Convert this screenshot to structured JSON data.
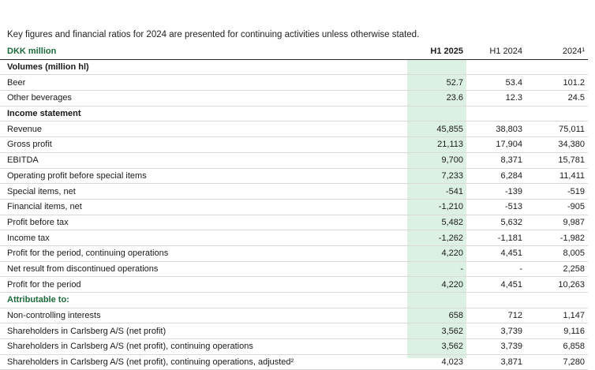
{
  "intro_text": "Key figures and financial ratios for 2024 are presented for continuing activities unless otherwise stated.",
  "header": {
    "label": "DKK million",
    "col1": "H1 2025",
    "col2": "H1 2024",
    "col3": "2024¹"
  },
  "rows": [
    {
      "type": "section",
      "label": "Volumes (million hl)",
      "v1": "",
      "v2": "",
      "v3": ""
    },
    {
      "type": "row",
      "label": "Beer",
      "v1": "52.7",
      "v2": "53.4",
      "v3": "101.2"
    },
    {
      "type": "row",
      "label": "Other beverages",
      "v1": "23.6",
      "v2": "12.3",
      "v3": "24.5"
    },
    {
      "type": "section",
      "label": "Income statement",
      "v1": "",
      "v2": "",
      "v3": ""
    },
    {
      "type": "row",
      "label": "Revenue",
      "v1": "45,855",
      "v2": "38,803",
      "v3": "75,011"
    },
    {
      "type": "row",
      "label": "Gross profit",
      "v1": "21,113",
      "v2": "17,904",
      "v3": "34,380"
    },
    {
      "type": "row",
      "label": "EBITDA",
      "v1": "9,700",
      "v2": "8,371",
      "v3": "15,781"
    },
    {
      "type": "row",
      "label": "Operating profit before special items",
      "v1": "7,233",
      "v2": "6,284",
      "v3": "11,411"
    },
    {
      "type": "row",
      "label": "Special items, net",
      "v1": "-541",
      "v2": "-139",
      "v3": "-519"
    },
    {
      "type": "row",
      "label": "Financial items, net",
      "v1": "-1,210",
      "v2": "-513",
      "v3": "-905"
    },
    {
      "type": "row",
      "label": "Profit before tax",
      "v1": "5,482",
      "v2": "5,632",
      "v3": "9,987"
    },
    {
      "type": "row",
      "label": "Income tax",
      "v1": "-1,262",
      "v2": "-1,181",
      "v3": "-1,982"
    },
    {
      "type": "row",
      "label": "Profit for the period, continuing operations",
      "v1": "4,220",
      "v2": "4,451",
      "v3": "8,005"
    },
    {
      "type": "row",
      "label": "Net result from discontinued operations",
      "v1": "-",
      "v2": "-",
      "v3": "2,258"
    },
    {
      "type": "row",
      "label": "Profit for the period",
      "v1": "4,220",
      "v2": "4,451",
      "v3": "10,263"
    },
    {
      "type": "section-green",
      "label": "Attributable to:",
      "v1": "",
      "v2": "",
      "v3": ""
    },
    {
      "type": "row",
      "label": "Non-controlling interests",
      "v1": "658",
      "v2": "712",
      "v3": "1,147"
    },
    {
      "type": "row",
      "label": "Shareholders in Carlsberg A/S (net profit)",
      "v1": "3,562",
      "v2": "3,739",
      "v3": "9,116"
    },
    {
      "type": "row",
      "label": "Shareholders in Carlsberg A/S (net profit), continuing operations",
      "v1": "3,562",
      "v2": "3,739",
      "v3": "6,858"
    },
    {
      "type": "row",
      "label": "Shareholders in Carlsberg A/S (net profit), continuing operations, adjusted²",
      "v1": "4,023",
      "v2": "3,871",
      "v3": "7,280"
    }
  ]
}
